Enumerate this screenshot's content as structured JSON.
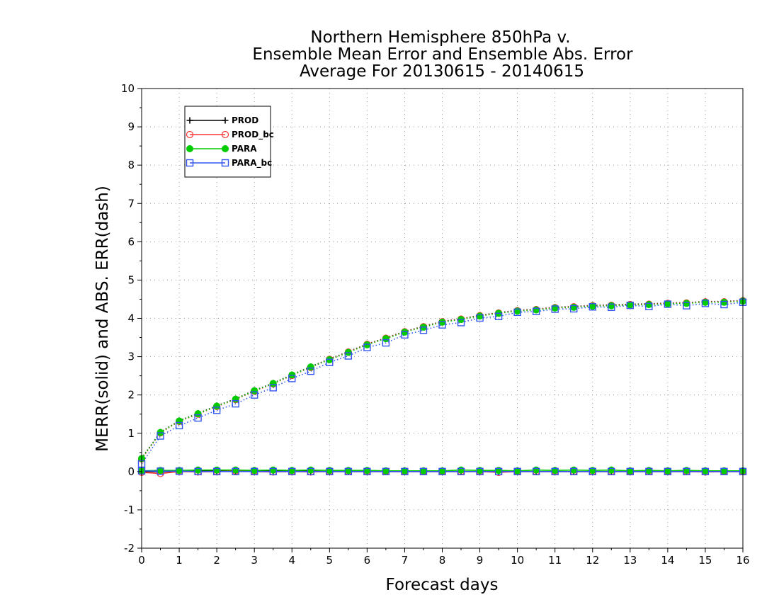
{
  "chart_data": {
    "type": "line",
    "title": [
      "Northern Hemisphere 850hPa v.",
      "Ensemble Mean Error and Ensemble Abs. Error",
      "Average For 20130615 - 20140615"
    ],
    "xlabel": "Forecast days",
    "ylabel": "MERR(solid) and ABS. ERR(dash)",
    "xlim": [
      0,
      16
    ],
    "ylim": [
      -2,
      10
    ],
    "xticks": [
      "0",
      "1",
      "2",
      "3",
      "4",
      "5",
      "6",
      "7",
      "8",
      "9",
      "10",
      "11",
      "12",
      "13",
      "14",
      "15",
      "16"
    ],
    "yticks": [
      "-2",
      "-1",
      "0",
      "1",
      "2",
      "3",
      "4",
      "5",
      "6",
      "7",
      "8",
      "9",
      "10"
    ],
    "grid": true,
    "legend_position": "top-left",
    "x": [
      0,
      0.5,
      1,
      1.5,
      2,
      2.5,
      3,
      3.5,
      4,
      4.5,
      5,
      5.5,
      6,
      6.5,
      7,
      7.5,
      8,
      8.5,
      9,
      9.5,
      10,
      10.5,
      11,
      11.5,
      12,
      12.5,
      13,
      13.5,
      14,
      14.5,
      15,
      15.5,
      16
    ],
    "series": [
      {
        "name": "PROD",
        "color": "#000000",
        "marker": "plus",
        "mean_error": [
          0.0,
          0.0,
          0.0,
          0.01,
          0.01,
          0.01,
          0.01,
          0.01,
          0.01,
          0.01,
          0.0,
          0.0,
          0.0,
          0.0,
          0.0,
          0.0,
          0.0,
          0.0,
          0.0,
          0.0,
          0.0,
          0.0,
          0.0,
          0.0,
          0.0,
          0.0,
          0.0,
          0.0,
          0.0,
          0.0,
          0.0,
          0.0,
          0.0
        ],
        "abs_error": [
          0.35,
          1.03,
          1.33,
          1.52,
          1.72,
          1.9,
          2.12,
          2.31,
          2.53,
          2.74,
          2.94,
          3.13,
          3.33,
          3.49,
          3.66,
          3.79,
          3.92,
          3.99,
          4.08,
          4.15,
          4.21,
          4.24,
          4.29,
          4.31,
          4.34,
          4.35,
          4.37,
          4.38,
          4.4,
          4.41,
          4.44,
          4.44,
          4.47
        ]
      },
      {
        "name": "PROD_bc",
        "color": "#ff3333",
        "marker": "circle",
        "mean_error": [
          -0.02,
          -0.05,
          0.0,
          -0.01,
          0.0,
          0.01,
          0.0,
          -0.01,
          0.0,
          -0.01,
          0.0,
          0.0,
          0.0,
          0.0,
          0.0,
          0.0,
          0.0,
          0.0,
          0.0,
          -0.02,
          0.0,
          0.0,
          0.0,
          0.0,
          0.0,
          0.0,
          0.0,
          0.0,
          0.0,
          0.0,
          -0.01,
          0.0,
          0.0
        ],
        "abs_error": [
          0.33,
          1.01,
          1.31,
          1.5,
          1.7,
          1.88,
          2.1,
          2.29,
          2.51,
          2.72,
          2.93,
          3.12,
          3.32,
          3.48,
          3.65,
          3.78,
          3.91,
          3.98,
          4.07,
          4.14,
          4.2,
          4.23,
          4.28,
          4.3,
          4.33,
          4.34,
          4.36,
          4.37,
          4.39,
          4.4,
          4.43,
          4.43,
          4.46
        ]
      },
      {
        "name": "PARA",
        "color": "#00cc00",
        "marker": "filled-circle",
        "mean_error": [
          0.02,
          0.03,
          0.03,
          0.04,
          0.04,
          0.04,
          0.03,
          0.04,
          0.03,
          0.04,
          0.03,
          0.03,
          0.03,
          0.02,
          0.02,
          0.02,
          0.02,
          0.04,
          0.03,
          0.03,
          0.02,
          0.04,
          0.03,
          0.04,
          0.03,
          0.04,
          0.02,
          0.03,
          0.02,
          0.03,
          0.02,
          0.02,
          0.02
        ],
        "abs_error": [
          0.34,
          1.02,
          1.32,
          1.51,
          1.71,
          1.89,
          2.11,
          2.3,
          2.52,
          2.73,
          2.92,
          3.11,
          3.31,
          3.47,
          3.64,
          3.77,
          3.9,
          3.97,
          4.06,
          4.13,
          4.19,
          4.22,
          4.27,
          4.29,
          4.32,
          4.33,
          4.35,
          4.36,
          4.38,
          4.39,
          4.42,
          4.42,
          4.45
        ]
      },
      {
        "name": "PARA_bc",
        "color": "#3355ee",
        "marker": "square",
        "mean_error": [
          0.02,
          0.01,
          0.01,
          0.0,
          0.0,
          0.0,
          0.0,
          0.0,
          0.0,
          0.0,
          0.0,
          0.0,
          0.0,
          0.0,
          0.0,
          0.0,
          0.0,
          0.0,
          0.0,
          0.0,
          0.0,
          0.0,
          0.0,
          0.0,
          0.0,
          0.0,
          0.0,
          0.0,
          0.0,
          0.0,
          0.0,
          0.0,
          0.0
        ],
        "abs_error": [
          0.2,
          0.93,
          1.2,
          1.4,
          1.6,
          1.77,
          2.0,
          2.19,
          2.43,
          2.62,
          2.85,
          3.02,
          3.24,
          3.36,
          3.57,
          3.69,
          3.83,
          3.89,
          4.01,
          4.05,
          4.16,
          4.18,
          4.24,
          4.25,
          4.3,
          4.29,
          4.34,
          4.31,
          4.37,
          4.33,
          4.39,
          4.36,
          4.42
        ]
      }
    ]
  }
}
